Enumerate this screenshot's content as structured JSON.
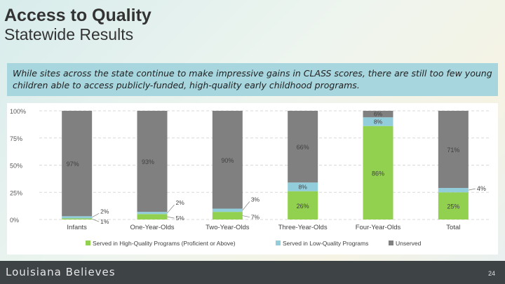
{
  "header": {
    "title": "Access to Quality",
    "subtitle": "Statewide Results"
  },
  "callout": {
    "text": "While sites across the state continue to make impressive gains in CLASS scores, there are still too few young children able to access publicly-funded, high-quality early childhood programs."
  },
  "footer": {
    "brand": "Louisiana Believes",
    "page_number": "24"
  },
  "colors": {
    "high_quality": "#92d050",
    "low_quality": "#92cddc",
    "unserved": "#808080"
  },
  "chart_data": {
    "type": "bar",
    "stacked": true,
    "categories": [
      "Infants",
      "One-Year-Olds",
      "Two-Year-Olds",
      "Three-Year-Olds",
      "Four-Year-Olds",
      "Total"
    ],
    "series": [
      {
        "name": "Served in High-Quality Programs (Proficient or Above)",
        "values": [
          1,
          5,
          7,
          26,
          86,
          25
        ],
        "labels": [
          "1%",
          "5%",
          "7%",
          "26%",
          "86%",
          "25%"
        ]
      },
      {
        "name": "Served in Low-Quality Programs",
        "values": [
          2,
          2,
          3,
          8,
          8,
          4
        ],
        "labels": [
          "2%",
          "2%",
          "3%",
          "8%",
          "8%",
          "4%"
        ]
      },
      {
        "name": "Unserved",
        "values": [
          97,
          93,
          90,
          66,
          6,
          71
        ],
        "labels": [
          "97%",
          "93%",
          "90%",
          "66%",
          "6%",
          "71%"
        ]
      }
    ],
    "y_ticks": [
      "0%",
      "25%",
      "50%",
      "75%",
      "100%"
    ],
    "ylim": [
      0,
      100
    ],
    "legend_position": "bottom"
  }
}
